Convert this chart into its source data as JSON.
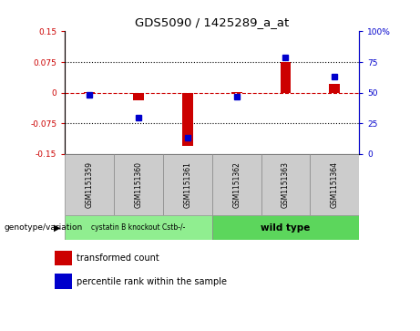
{
  "title": "GDS5090 / 1425289_a_at",
  "samples": [
    "GSM1151359",
    "GSM1151360",
    "GSM1151361",
    "GSM1151362",
    "GSM1151363",
    "GSM1151364"
  ],
  "red_values": [
    0.002,
    -0.018,
    -0.13,
    0.001,
    0.075,
    0.022
  ],
  "blue_values": [
    48,
    30,
    13,
    47,
    79,
    63
  ],
  "group1_label": "cystatin B knockout Cstb-/-",
  "group2_label": "wild type",
  "group1_color": "#90EE90",
  "group2_color": "#5CD65C",
  "genotype_label": "genotype/variation",
  "ylim_left": [
    -0.15,
    0.15
  ],
  "ylim_right": [
    0,
    100
  ],
  "yticks_left": [
    -0.15,
    -0.075,
    0,
    0.075,
    0.15
  ],
  "yticks_right": [
    0,
    25,
    50,
    75,
    100
  ],
  "ytick_labels_left": [
    "-0.15",
    "-0.075",
    "0",
    "0.075",
    "0.15"
  ],
  "ytick_labels_right": [
    "0",
    "25",
    "50",
    "75",
    "100%"
  ],
  "red_color": "#CC0000",
  "blue_color": "#0000CC",
  "legend_red_label": "transformed count",
  "legend_blue_label": "percentile rank within the sample",
  "bg_color": "#FFFFFF",
  "sample_box_color": "#CCCCCC"
}
